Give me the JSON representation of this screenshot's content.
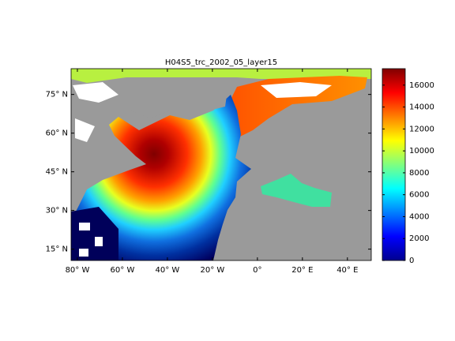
{
  "chart_data": {
    "type": "map",
    "title": "H04S5_trc_2002_05_layer15",
    "xlim": [
      -82.8,
      50.6
    ],
    "ylim": [
      10.6,
      85
    ],
    "xticks": [
      {
        "value": -80,
        "label": "80° W"
      },
      {
        "value": -60,
        "label": "60° W"
      },
      {
        "value": -40,
        "label": "40° W"
      },
      {
        "value": -20,
        "label": "20° W"
      },
      {
        "value": 0,
        "label": "0°"
      },
      {
        "value": 20,
        "label": "20° E"
      },
      {
        "value": 40,
        "label": "40° E"
      }
    ],
    "yticks": [
      {
        "value": 15,
        "label": "15° N"
      },
      {
        "value": 30,
        "label": "30° N"
      },
      {
        "value": 45,
        "label": "45° N"
      },
      {
        "value": 60,
        "label": "60° N"
      },
      {
        "value": 75,
        "label": "75° N"
      }
    ],
    "colorbar": {
      "clim": [
        0,
        17500
      ],
      "ticks": [
        0,
        2000,
        4000,
        6000,
        8000,
        10000,
        12000,
        14000,
        16000
      ]
    }
  }
}
